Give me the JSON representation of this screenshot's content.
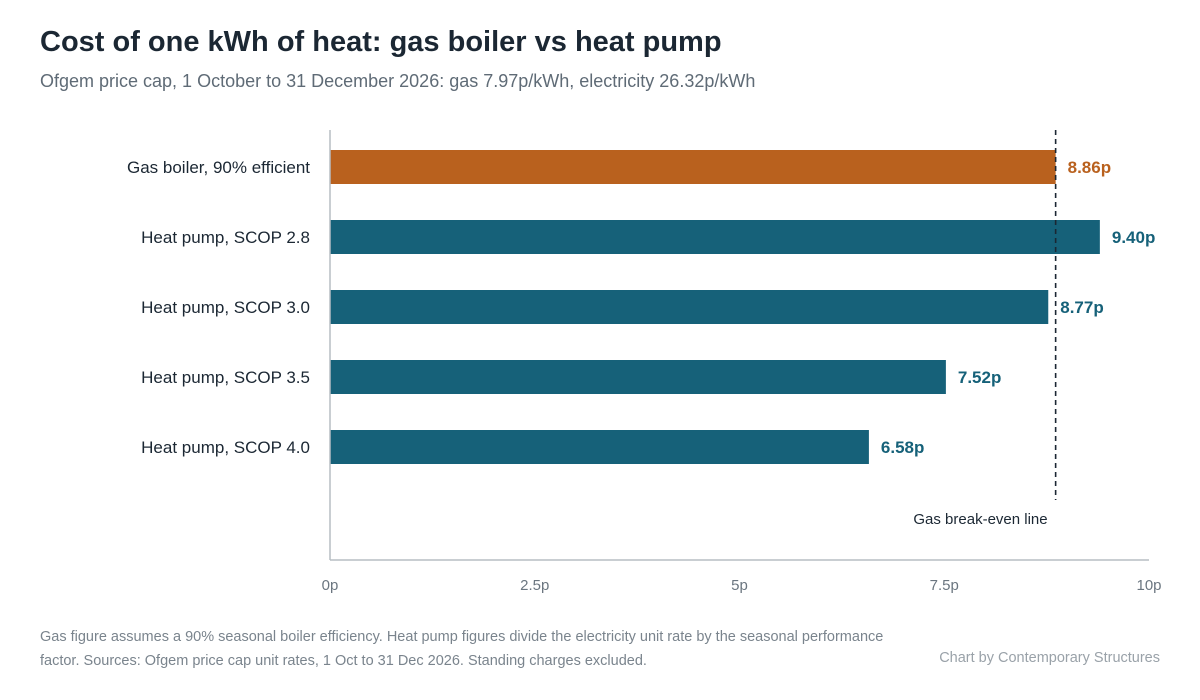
{
  "title": "Cost of one kWh of heat: gas boiler vs heat pump",
  "subtitle": "Ofgem price cap, 1 October to 31 December 2026: gas 7.97p/kWh, electricity 26.32p/kWh",
  "footnote": "Gas figure assumes a 90% seasonal boiler efficiency. Heat pump figures divide the electricity unit rate by the seasonal performance factor. Sources: Ofgem price cap unit rates, 1 Oct to 31 Dec 2026. Standing charges excluded.",
  "credit": "Chart by Contemporary Structures",
  "colors": {
    "gas": "#b9611e",
    "heat_pump": "#166179",
    "axis": "#b7bec4",
    "tick_text": "#6b7680"
  },
  "chart_data": {
    "type": "bar",
    "orientation": "horizontal",
    "categories": [
      "Gas boiler, 90% efficient",
      "Heat pump, SCOP 2.8",
      "Heat pump, SCOP 3.0",
      "Heat pump, SCOP 3.5",
      "Heat pump, SCOP 4.0"
    ],
    "values": [
      8.86,
      9.4,
      8.77,
      7.52,
      6.58
    ],
    "value_labels": [
      "8.86p",
      "9.40p",
      "8.77p",
      "7.52p",
      "6.58p"
    ],
    "bar_color_keys": [
      "gas",
      "heat_pump",
      "heat_pump",
      "heat_pump",
      "heat_pump"
    ],
    "xlim": [
      0,
      10
    ],
    "x_ticks": [
      0,
      2.5,
      5,
      7.5,
      10
    ],
    "x_tick_labels": [
      "0p",
      "2.5p",
      "5p",
      "7.5p",
      "10p"
    ],
    "reference_line": {
      "value": 8.86,
      "label": "Gas break-even line",
      "style": "dashed"
    },
    "grid": false,
    "legend": "none"
  }
}
